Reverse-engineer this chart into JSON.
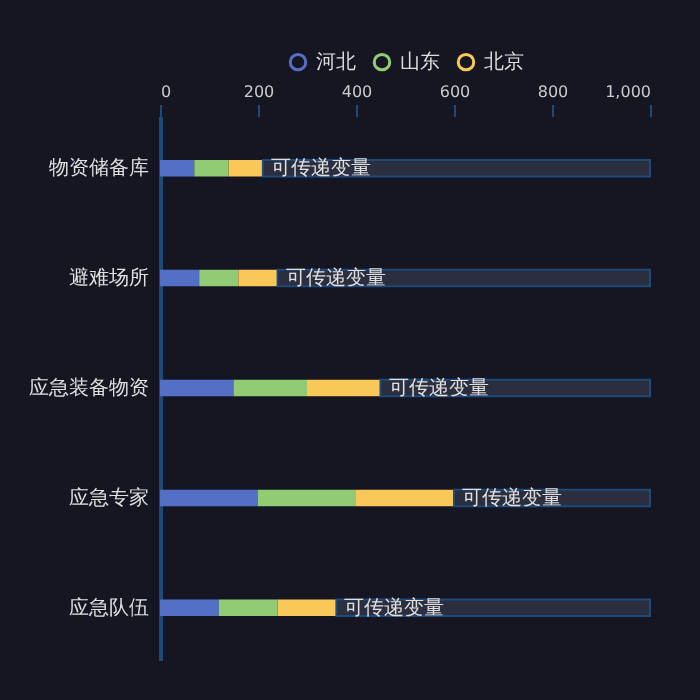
{
  "chart_data": {
    "type": "bar",
    "orientation": "horizontal",
    "stacked": true,
    "categories": [
      "物资储备库",
      "避难场所",
      "应急装备物资",
      "应急专家",
      "应急队伍"
    ],
    "series": [
      {
        "name": "河北",
        "color": "#5470c6",
        "values": [
          70,
          80,
          150,
          200,
          120
        ]
      },
      {
        "name": "山东",
        "color": "#91cc75",
        "values": [
          70,
          80,
          150,
          200,
          120
        ]
      },
      {
        "name": "北京",
        "color": "#fac858",
        "values": [
          70,
          80,
          150,
          200,
          120
        ]
      },
      {
        "color": "#2b2e3f",
        "values": [
          790,
          760,
          550,
          400,
          640
        ]
      }
    ],
    "annotations": [
      {
        "text": "可传递变量",
        "x": 210,
        "y": "物资储备库"
      },
      {
        "text": "可传递变量",
        "x": 240,
        "y": "避难场所"
      },
      {
        "text": "可传递变量",
        "x": 450,
        "y": "应急装备物资"
      },
      {
        "text": "可传递变量",
        "x": 600,
        "y": "应急专家"
      },
      {
        "text": "可传递变量",
        "x": 360,
        "y": "应急队伍"
      }
    ],
    "xlim": [
      0,
      1000
    ],
    "xticks": [
      0,
      200,
      400,
      600,
      800,
      {
        "value": 1000,
        "label": "1,000"
      }
    ],
    "grid": false,
    "legend": "top"
  }
}
